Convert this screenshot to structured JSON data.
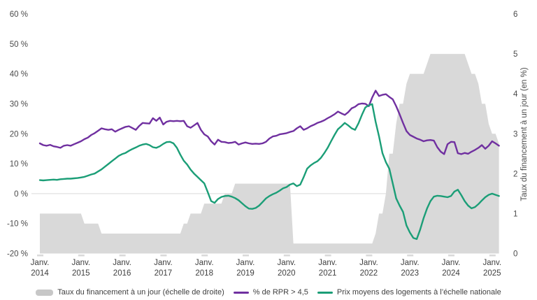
{
  "chart_data": {
    "type": "line",
    "frequency": "monthly",
    "start": "2014-01",
    "end": "2025-03",
    "grid": "only zero line on left axis",
    "legend_position": "bottom-center",
    "colors": {
      "area_gray": "#d9d9d9",
      "purple": "#7030a0",
      "teal": "#1b9e77",
      "gridline": "#d9d9d9",
      "axis_text": "#4a4a4a"
    },
    "left_axis": {
      "min": -20,
      "max": 60,
      "tick_values": [
        60,
        50,
        40,
        30,
        20,
        10,
        0,
        -10,
        -20
      ],
      "tick_labels": [
        "60 %",
        "50 %",
        "40 %",
        "30 %",
        "20 %",
        "10 %",
        "0 %",
        "-10 %",
        "-20 %"
      ]
    },
    "right_axis": {
      "min": 0,
      "max": 6,
      "label": "Taux du financement à un jour (en %)",
      "tick_values": [
        6,
        5,
        4,
        3,
        2,
        1,
        0
      ],
      "tick_labels": [
        "6",
        "5",
        "4",
        "3",
        "2",
        "1",
        "0"
      ]
    },
    "x_tick_labels": [
      {
        "month": "Janv.",
        "year": "2014"
      },
      {
        "month": "Janv.",
        "year": "2015"
      },
      {
        "month": "Janv.",
        "year": "2016"
      },
      {
        "month": "Janv.",
        "year": "2017"
      },
      {
        "month": "Janv.",
        "year": "2018"
      },
      {
        "month": "Janv.",
        "year": "2019"
      },
      {
        "month": "Janv.",
        "year": "2020"
      },
      {
        "month": "Janv.",
        "year": "2021"
      },
      {
        "month": "Janv.",
        "year": "2022"
      },
      {
        "month": "Janv.",
        "year": "2023"
      },
      {
        "month": "Janv.",
        "year": "2024"
      },
      {
        "month": "Janv.",
        "year": "2025"
      }
    ],
    "series": [
      {
        "name": "Taux du financement à un jour (échelle de droite)",
        "type": "area",
        "axis": "right",
        "color": "#d9d9d9",
        "values": [
          1,
          1,
          1,
          1,
          1,
          1,
          1,
          1,
          1,
          1,
          1,
          1,
          1,
          0.75,
          0.75,
          0.75,
          0.75,
          0.75,
          0.5,
          0.5,
          0.5,
          0.5,
          0.5,
          0.5,
          0.5,
          0.5,
          0.5,
          0.5,
          0.5,
          0.5,
          0.5,
          0.5,
          0.5,
          0.5,
          0.5,
          0.5,
          0.5,
          0.5,
          0.5,
          0.5,
          0.5,
          0.5,
          0.75,
          0.75,
          1,
          1,
          1,
          1,
          1.25,
          1.25,
          1.25,
          1.25,
          1.25,
          1.25,
          1.5,
          1.5,
          1.5,
          1.75,
          1.75,
          1.75,
          1.75,
          1.75,
          1.75,
          1.75,
          1.75,
          1.75,
          1.75,
          1.75,
          1.75,
          1.75,
          1.75,
          1.75,
          1.75,
          1.75,
          0.25,
          0.25,
          0.25,
          0.25,
          0.25,
          0.25,
          0.25,
          0.25,
          0.25,
          0.25,
          0.25,
          0.25,
          0.25,
          0.25,
          0.25,
          0.25,
          0.25,
          0.25,
          0.25,
          0.25,
          0.25,
          0.25,
          0.25,
          0.25,
          0.5,
          1,
          1,
          1.5,
          2.5,
          2.5,
          3.25,
          3.75,
          3.75,
          4.25,
          4.5,
          4.5,
          4.5,
          4.5,
          4.5,
          4.75,
          5,
          5,
          5,
          5,
          5,
          5,
          5,
          5,
          5,
          5,
          5,
          4.75,
          4.5,
          4.5,
          4.25,
          3.75,
          3.75,
          3.25,
          3,
          3,
          2.75
        ]
      },
      {
        "name": "% de RPR > 4,5",
        "type": "line",
        "axis": "left",
        "color": "#7030a0",
        "values": [
          16.8,
          16.2,
          16.0,
          16.3,
          15.8,
          15.6,
          15.3,
          16.0,
          16.2,
          16.0,
          16.5,
          17.0,
          17.5,
          18.2,
          18.7,
          19.6,
          20.2,
          21.0,
          21.8,
          21.5,
          21.3,
          21.5,
          20.7,
          21.3,
          21.8,
          22.3,
          22.5,
          21.9,
          21.3,
          22.6,
          23.6,
          23.5,
          23.4,
          25.2,
          24.3,
          25.4,
          23.1,
          24.0,
          24.3,
          24.2,
          24.3,
          24.2,
          24.3,
          22.5,
          22.0,
          22.8,
          23.6,
          21.3,
          19.8,
          19.1,
          17.5,
          16.4,
          18.0,
          17.3,
          17.2,
          16.9,
          17.0,
          17.3,
          16.4,
          16.8,
          17.1,
          16.8,
          16.6,
          16.7,
          16.6,
          16.8,
          17.3,
          18.4,
          19.1,
          19.3,
          19.8,
          20.0,
          20.2,
          20.6,
          20.9,
          21.8,
          22.5,
          21.3,
          21.8,
          22.5,
          23.0,
          23.6,
          24.0,
          24.5,
          25.2,
          25.8,
          26.5,
          27.4,
          26.8,
          26.3,
          27.2,
          28.5,
          29.0,
          29.9,
          30.1,
          30.0,
          29.2,
          32.1,
          34.4,
          32.6,
          33.0,
          33.2,
          32.3,
          31.5,
          29.2,
          26.5,
          23.6,
          20.9,
          19.6,
          19.0,
          18.4,
          18.0,
          17.5,
          17.8,
          17.9,
          17.7,
          15.5,
          14.0,
          13.2,
          16.5,
          17.3,
          17.2,
          13.5,
          13.2,
          13.6,
          13.3,
          14.0,
          14.6,
          15.3,
          16.2,
          15.0,
          16.0,
          17.5,
          16.8,
          16.0
        ]
      },
      {
        "name": "Prix moyens des logements à l’échelle nationale",
        "type": "line",
        "axis": "left",
        "color": "#1b9e77",
        "values": [
          4.5,
          4.4,
          4.5,
          4.6,
          4.7,
          4.6,
          4.8,
          4.9,
          5.0,
          5.0,
          5.1,
          5.2,
          5.4,
          5.6,
          6.0,
          6.4,
          6.7,
          7.4,
          8.1,
          9.0,
          9.9,
          10.8,
          11.7,
          12.6,
          13.2,
          13.6,
          14.3,
          14.9,
          15.4,
          16.0,
          16.4,
          16.6,
          16.2,
          15.5,
          15.3,
          15.8,
          16.6,
          17.2,
          17.3,
          16.8,
          15.3,
          13.0,
          11.0,
          9.7,
          8.0,
          6.7,
          5.6,
          4.5,
          3.4,
          0.5,
          -2.5,
          -3.1,
          -1.8,
          -1.1,
          -0.8,
          -0.7,
          -1.0,
          -1.5,
          -2.2,
          -3.2,
          -4.2,
          -5.0,
          -5.1,
          -4.8,
          -4.0,
          -2.8,
          -1.6,
          -0.8,
          -0.2,
          0.3,
          1.0,
          1.8,
          2.2,
          3.0,
          3.4,
          2.5,
          3.0,
          5.5,
          8.3,
          9.4,
          10.2,
          10.8,
          11.9,
          13.5,
          15.3,
          17.5,
          19.6,
          21.5,
          22.5,
          23.6,
          22.8,
          21.8,
          21.3,
          23.5,
          26.3,
          28.8,
          29.5,
          29.9,
          24.0,
          19.1,
          13.5,
          10.5,
          8.3,
          3.4,
          -1.6,
          -4.0,
          -6.1,
          -10.6,
          -13.0,
          -14.8,
          -15.2,
          -12.0,
          -8.2,
          -5.0,
          -2.5,
          -1.0,
          -0.7,
          -0.8,
          -1.0,
          -1.2,
          -0.8,
          0.7,
          1.3,
          -0.5,
          -2.5,
          -4.0,
          -4.9,
          -4.5,
          -3.5,
          -2.3,
          -1.2,
          -0.4,
          0.0,
          -0.4,
          -0.8
        ]
      }
    ]
  }
}
